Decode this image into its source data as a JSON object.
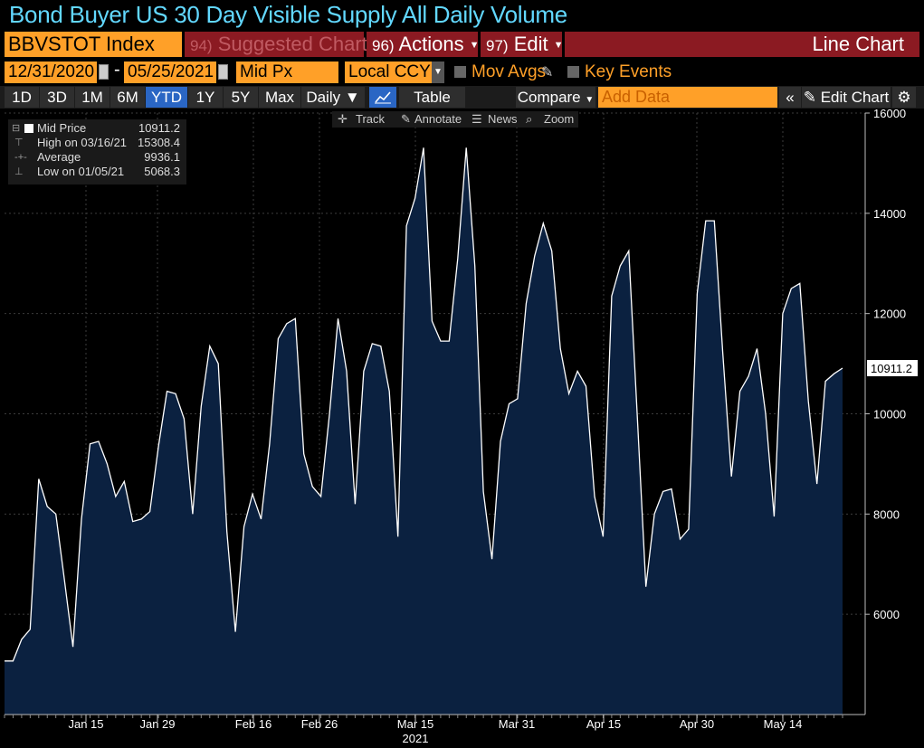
{
  "header": {
    "title": "Bond Buyer US 30 Day Visible Supply All Daily Volume",
    "ticker": "BBVSTOT Index",
    "suggested": {
      "num": "94)",
      "label": "Suggested Charts"
    },
    "actions": {
      "num": "96)",
      "label": "Actions"
    },
    "edit": {
      "num": "97)",
      "label": "Edit"
    },
    "chart_type": "Line Chart"
  },
  "controls": {
    "start_date": "12/31/2020",
    "end_date": "05/25/2021",
    "field": "Mid Px",
    "currency": "Local CCY",
    "mov_avgs": "Mov Avgs",
    "key_events": "Key Events"
  },
  "ranges": [
    {
      "label": "1D"
    },
    {
      "label": "3D"
    },
    {
      "label": "1M"
    },
    {
      "label": "6M"
    },
    {
      "label": "YTD",
      "selected": true
    },
    {
      "label": "1Y"
    },
    {
      "label": "5Y"
    },
    {
      "label": "Max"
    }
  ],
  "toolbar": {
    "period": "Daily",
    "table": "Table",
    "compare": "Compare",
    "add_data_placeholder": "Add Data",
    "edit_chart": "Edit Chart",
    "track": "Track",
    "annotate": "Annotate",
    "news": "News",
    "zoom": "Zoom"
  },
  "legend": {
    "mid_label": "Mid Price",
    "mid_value": "10911.2",
    "high_label": "High on 03/16/21",
    "high_value": "15308.4",
    "avg_label": "Average",
    "avg_value": "9936.1",
    "low_label": "Low on 01/05/21",
    "low_value": "5068.3"
  },
  "colors": {
    "accent": "#ffa028",
    "menu": "#8b1a22",
    "title": "#62d8ff",
    "area_fill": "#0b2140",
    "line": "#ffffff",
    "selected": "#2a66c4"
  },
  "chart_data": {
    "type": "area",
    "series": [
      {
        "name": "Mid Price",
        "values": [
          5068.3,
          5068.3,
          5500,
          5700,
          8700,
          8150,
          8000,
          6700,
          5350,
          7900,
          9400,
          9450,
          9000,
          8350,
          8650,
          7850,
          7900,
          8050,
          9350,
          10450,
          10400,
          9900,
          8000,
          10150,
          11350,
          11000,
          7650,
          5650,
          7750,
          8400,
          7900,
          9400,
          11500,
          11800,
          11900,
          9200,
          8550,
          8350,
          10000,
          11900,
          10850,
          8200,
          10850,
          11400,
          11350,
          10450,
          7550,
          13750,
          14300,
          15308.4,
          11850,
          11450,
          11450,
          13100,
          15308.4,
          12950,
          8450,
          7100,
          9450,
          10200,
          10300,
          12200,
          13150,
          13800,
          13250,
          11300,
          10400,
          10850,
          10550,
          8350,
          7550,
          12350,
          12950,
          13250,
          9950,
          6550,
          8000,
          8450,
          8500,
          7500,
          7700,
          12400,
          13850,
          13850,
          11200,
          8750,
          10450,
          10750,
          11300,
          10000,
          7950,
          12000,
          12500,
          12600,
          10250,
          8600,
          10650,
          10800,
          10911.2
        ]
      }
    ],
    "x_ticks": [
      "Jan 15",
      "Jan 29",
      "Feb 16",
      "Feb 26",
      "Mar 15",
      "Mar 31",
      "Apr 15",
      "Apr 30",
      "May 14"
    ],
    "x_year": "2021",
    "y_ticks": [
      6000,
      8000,
      10000,
      12000,
      14000,
      16000
    ],
    "ylim": [
      4000,
      16000
    ],
    "last_value": "10911.2"
  }
}
